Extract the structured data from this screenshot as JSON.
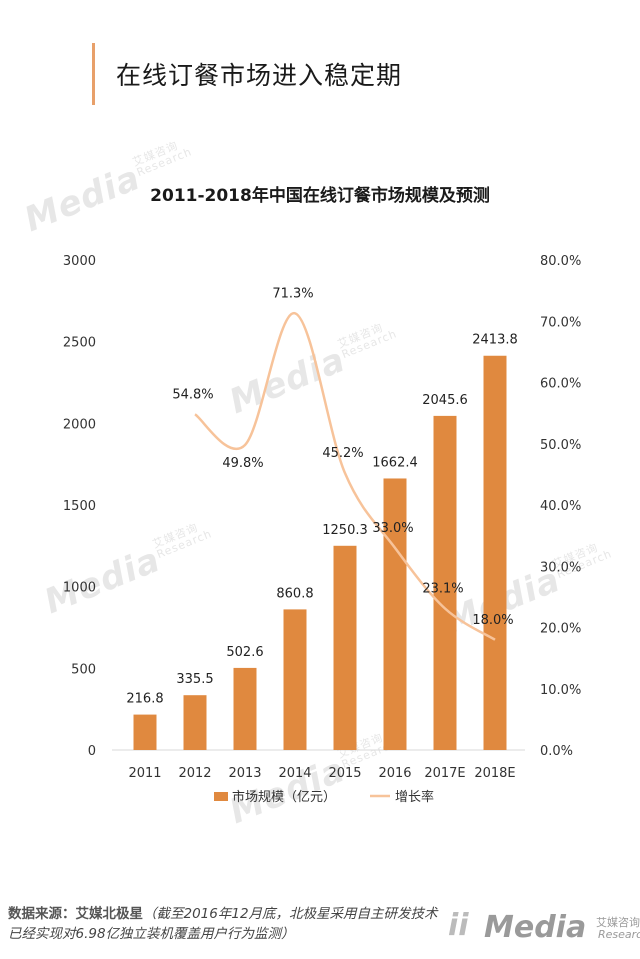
{
  "page": {
    "title": "在线订餐市场进入稳定期"
  },
  "chart_data": {
    "type": "bar",
    "title": "2011-2018年中国在线订餐市场规模及预测",
    "categories": [
      "2011",
      "2012",
      "2013",
      "2014",
      "2015",
      "2016",
      "2017E",
      "2018E"
    ],
    "series": [
      {
        "name": "市场规模（亿元）",
        "type": "bar",
        "axis": "left",
        "color": "#e0893f",
        "values": [
          216.8,
          335.5,
          502.6,
          860.8,
          1250.3,
          1662.4,
          2045.6,
          2413.8
        ],
        "labels": [
          "216.8",
          "335.5",
          "502.6",
          "860.8",
          "1250.3",
          "1662.4",
          "2045.6",
          "2413.8"
        ]
      },
      {
        "name": "增长率",
        "type": "line",
        "axis": "right",
        "color": "#f7c39a",
        "values": [
          null,
          54.8,
          49.8,
          71.3,
          45.2,
          33.0,
          23.1,
          18.0
        ],
        "labels": [
          "",
          "54.8%",
          "49.8%",
          "71.3%",
          "45.2%",
          "33.0%",
          "23.1%",
          "18.0%"
        ]
      }
    ],
    "y_left": {
      "min": 0,
      "max": 3000,
      "ticks": [
        "0",
        "500",
        "1000",
        "1500",
        "2000",
        "2500",
        "3000"
      ]
    },
    "y_right": {
      "min": 0,
      "max": 80,
      "ticks": [
        "0.0%",
        "10.0%",
        "20.0%",
        "30.0%",
        "40.0%",
        "50.0%",
        "60.0%",
        "70.0%",
        "80.0%"
      ]
    },
    "grid": false,
    "legend": "bottom"
  },
  "watermark": {
    "text": "Media",
    "cn": "艾媒咨询",
    "en": "Research"
  },
  "footer": {
    "source_label": "数据来源：艾媒北极星",
    "source_note": "（截至2016年12月底，北极星采用自主研发技术已经实现对6.98亿独立装机覆盖用户行为监测）",
    "logo_mark": "ii",
    "logo_text": "Media",
    "logo_cn": "艾媒咨询",
    "logo_en": "Research"
  }
}
